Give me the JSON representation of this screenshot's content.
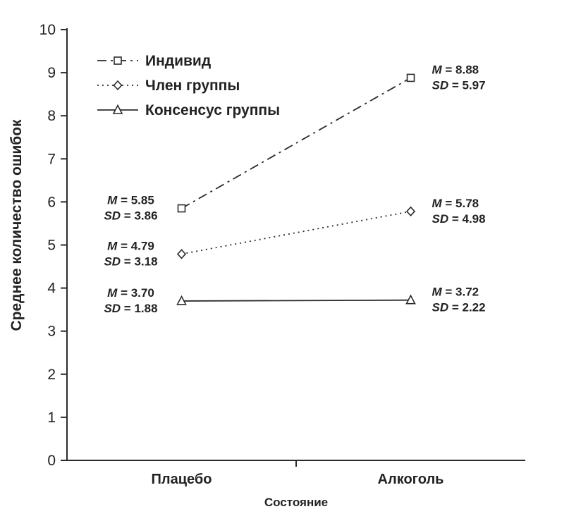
{
  "chart_data": {
    "type": "line",
    "title": "",
    "xlabel": "Состояние",
    "ylabel": "Среднее количество ошибок",
    "categories": [
      "Плацебо",
      "Алкоголь"
    ],
    "ylim": [
      0,
      10
    ],
    "yticks": [
      0,
      1,
      2,
      3,
      4,
      5,
      6,
      7,
      8,
      9,
      10
    ],
    "grid": false,
    "legend_position": "top-left",
    "axis_color": "#2b2b2b",
    "stat_prefixes": {
      "mean": "M",
      "sd": "SD"
    },
    "series": [
      {
        "name": "Индивид",
        "line_style": "dashdot",
        "marker": "square",
        "color": "#2b2b2b",
        "values": [
          5.85,
          8.88
        ],
        "sd_values": [
          3.86,
          5.97
        ]
      },
      {
        "name": "Член группы",
        "line_style": "dotted",
        "marker": "diamond",
        "color": "#2b2b2b",
        "values": [
          4.79,
          5.78
        ],
        "sd_values": [
          3.18,
          4.98
        ]
      },
      {
        "name": "Консенсус группы",
        "line_style": "solid",
        "marker": "triangle",
        "color": "#2b2b2b",
        "values": [
          3.7,
          3.72
        ],
        "sd_values": [
          1.88,
          2.22
        ]
      }
    ],
    "annotations": [
      {
        "series": 0,
        "point": 0,
        "m": "5.85",
        "sd": "3.86"
      },
      {
        "series": 0,
        "point": 1,
        "m": "8.88",
        "sd": "5.97"
      },
      {
        "series": 1,
        "point": 0,
        "m": "4.79",
        "sd": "3.18"
      },
      {
        "series": 1,
        "point": 1,
        "m": "5.78",
        "sd": "4.98"
      },
      {
        "series": 2,
        "point": 0,
        "m": "3.70",
        "sd": "1.88"
      },
      {
        "series": 2,
        "point": 1,
        "m": "3.72",
        "sd": "2.22"
      }
    ]
  }
}
